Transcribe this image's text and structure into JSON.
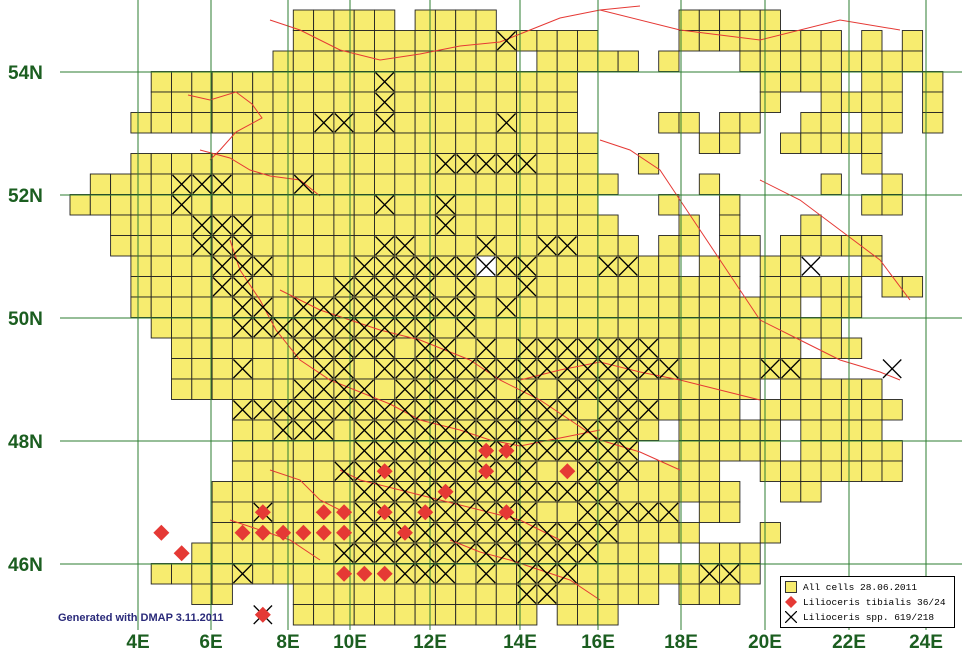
{
  "map": {
    "lat_labels": [
      "54N",
      "52N",
      "50N",
      "48N",
      "46N"
    ],
    "lon_labels": [
      "4E",
      "6E",
      "8E",
      "10E",
      "12E",
      "14E",
      "16E",
      "18E",
      "20E",
      "22E",
      "24E"
    ],
    "credit": "Generated with DMAP 3.11.2011",
    "colors": {
      "cell_fill": "#f7ec6f",
      "grid": "#2e7d32",
      "axis_label": "#1b5e20",
      "border": "#e53935",
      "record": "#e53935"
    }
  },
  "legend": {
    "all_cells": "All cells 28.06.2011",
    "tibialis": "Lilioceris tibialis 36/24",
    "spp": "Lilioceris spp. 619/218"
  }
}
